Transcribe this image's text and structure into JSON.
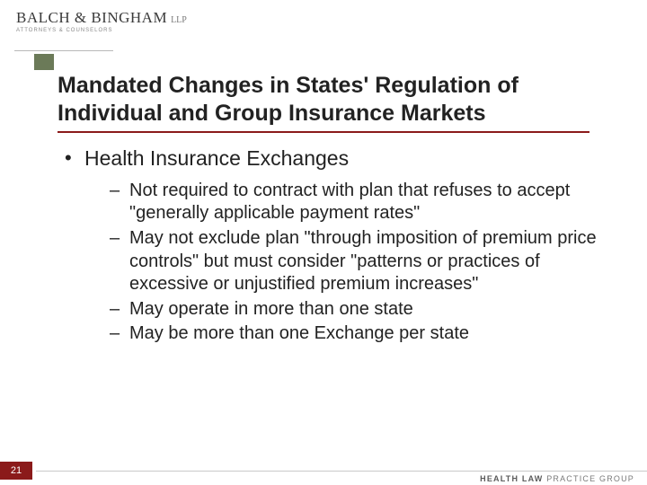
{
  "header": {
    "logo_main": "BALCH & BINGHAM",
    "logo_suffix": "LLP",
    "logo_sub": "ATTORNEYS & COUNSELORS"
  },
  "slide": {
    "title": "Mandated Changes in States' Regulation of Individual and Group Insurance Markets",
    "bullet_lvl1": "Health Insurance Exchanges",
    "bullets_lvl2": [
      "Not required to contract with plan that refuses to accept \"generally applicable payment rates\"",
      "May not exclude plan \"through imposition of premium price controls\" but must consider \"patterns or practices of excessive or unjustified premium increases\"",
      "May operate in more than one state",
      "May be more than one Exchange per state"
    ]
  },
  "footer": {
    "page_number": "21",
    "brand_bold": "HEALTH LAW",
    "brand_rest": "PRACTICE GROUP"
  },
  "colors": {
    "accent_green": "#6b7a58",
    "rule_red": "#8b1a1a",
    "text": "#222222",
    "footer_grey": "#7a7a7a"
  }
}
